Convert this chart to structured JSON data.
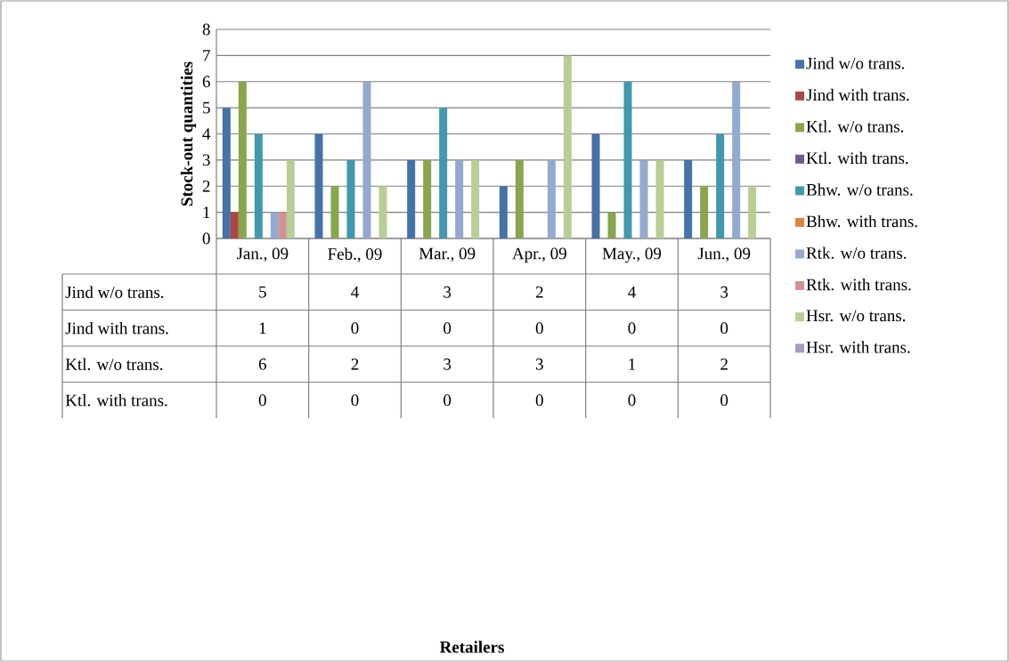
{
  "chart_data": {
    "type": "bar",
    "annotations": [
      "Retailers"
    ],
    "ylabel": "Stock-out quantities",
    "categories": [
      "Jan., 09",
      "Feb., 09",
      "Mar., 09",
      "Apr., 09",
      "May., 09",
      "Jun., 09"
    ],
    "series": [
      {
        "name": "Jind w/o trans.",
        "color": "#4572a7",
        "values": [
          5,
          4,
          3,
          2,
          4,
          3
        ],
        "value_labels": [
          "5",
          "4",
          "3",
          "2",
          "4",
          "3"
        ]
      },
      {
        "name": "Jind with trans.",
        "color": "#aa4643",
        "values": [
          1,
          0,
          0,
          0,
          0,
          0
        ],
        "value_labels": [
          "1",
          "0",
          "0",
          "0",
          "0",
          "0"
        ]
      },
      {
        "name": "Ktl. w/o trans.",
        "color": "#89a54e",
        "values": [
          6,
          2,
          3,
          3,
          1,
          2
        ],
        "value_labels": [
          "6",
          "2",
          "3",
          "3",
          "1",
          "2"
        ]
      },
      {
        "name": "Ktl. with trans.",
        "color": "#71588f",
        "values": [
          0,
          0,
          0,
          0,
          0,
          0
        ],
        "value_labels": [
          "0",
          "0",
          "0",
          "0",
          "0",
          "0"
        ]
      },
      {
        "name": "Bhw. w/o trans.",
        "color": "#4198af",
        "values": [
          4,
          3,
          5,
          0,
          6,
          4
        ]
      },
      {
        "name": "Bhw. with trans.",
        "color": "#db843d",
        "values": [
          0,
          0,
          0,
          0,
          0,
          0
        ]
      },
      {
        "name": "Rtk. w/o trans.",
        "color": "#93a9cf",
        "values": [
          1,
          6,
          3,
          3,
          3,
          6
        ]
      },
      {
        "name": "Rtk. with trans.",
        "color": "#d19392",
        "values": [
          1,
          0,
          0,
          0,
          0,
          0
        ]
      },
      {
        "name": "Hsr. w/o trans.",
        "color": "#b9cd96",
        "values": [
          3,
          2,
          3,
          7,
          3,
          2
        ]
      },
      {
        "name": "Hsr. with trans.",
        "color": "#a99bbd",
        "values": [
          0,
          0,
          0,
          0,
          0,
          0
        ]
      }
    ],
    "ylim": [
      0,
      8
    ],
    "yticks": [
      0,
      1,
      2,
      3,
      4,
      5,
      6,
      7,
      8
    ],
    "grid": "y",
    "legend": "right"
  }
}
